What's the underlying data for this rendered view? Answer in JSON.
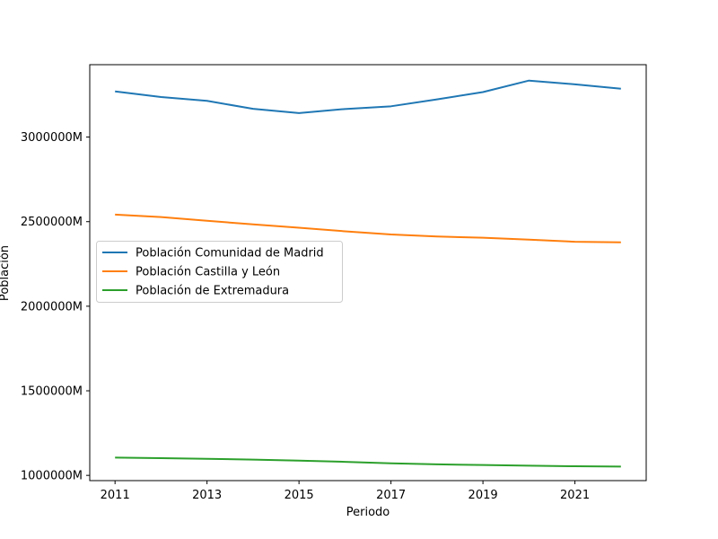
{
  "chart_data": {
    "type": "line",
    "title": "",
    "xlabel": "Periodo",
    "ylabel": "Población",
    "x": [
      2011,
      2012,
      2013,
      2014,
      2015,
      2016,
      2017,
      2018,
      2019,
      2020,
      2021,
      2022
    ],
    "xticks": [
      2011,
      2013,
      2015,
      2017,
      2019,
      2021
    ],
    "yticks": [
      1000000,
      1500000,
      2000000,
      2500000,
      3000000
    ],
    "ytick_labels": [
      "1000000M",
      "1500000M",
      "2000000M",
      "2500000M",
      "3000000M"
    ],
    "xlim": [
      2010.45,
      2022.55
    ],
    "ylim": [
      969000,
      3428000
    ],
    "grid": false,
    "legend_position": "center-left",
    "series": [
      {
        "name": "Población Comunidad de Madrid",
        "color": "#1f77b4",
        "values": [
          3270000,
          3237000,
          3214000,
          3167000,
          3142000,
          3166000,
          3182000,
          3223000,
          3266000,
          3334000,
          3312000,
          3286000
        ]
      },
      {
        "name": "Población Castilla y León",
        "color": "#ff7f0e",
        "values": [
          2542000,
          2527000,
          2505000,
          2484000,
          2464000,
          2443000,
          2424000,
          2412000,
          2405000,
          2394000,
          2381000,
          2378000
        ]
      },
      {
        "name": "Población de Extremadura",
        "color": "#2ca02c",
        "values": [
          1105000,
          1102000,
          1098000,
          1093000,
          1087000,
          1080000,
          1071000,
          1065000,
          1061000,
          1057000,
          1054000,
          1052000
        ]
      }
    ]
  }
}
